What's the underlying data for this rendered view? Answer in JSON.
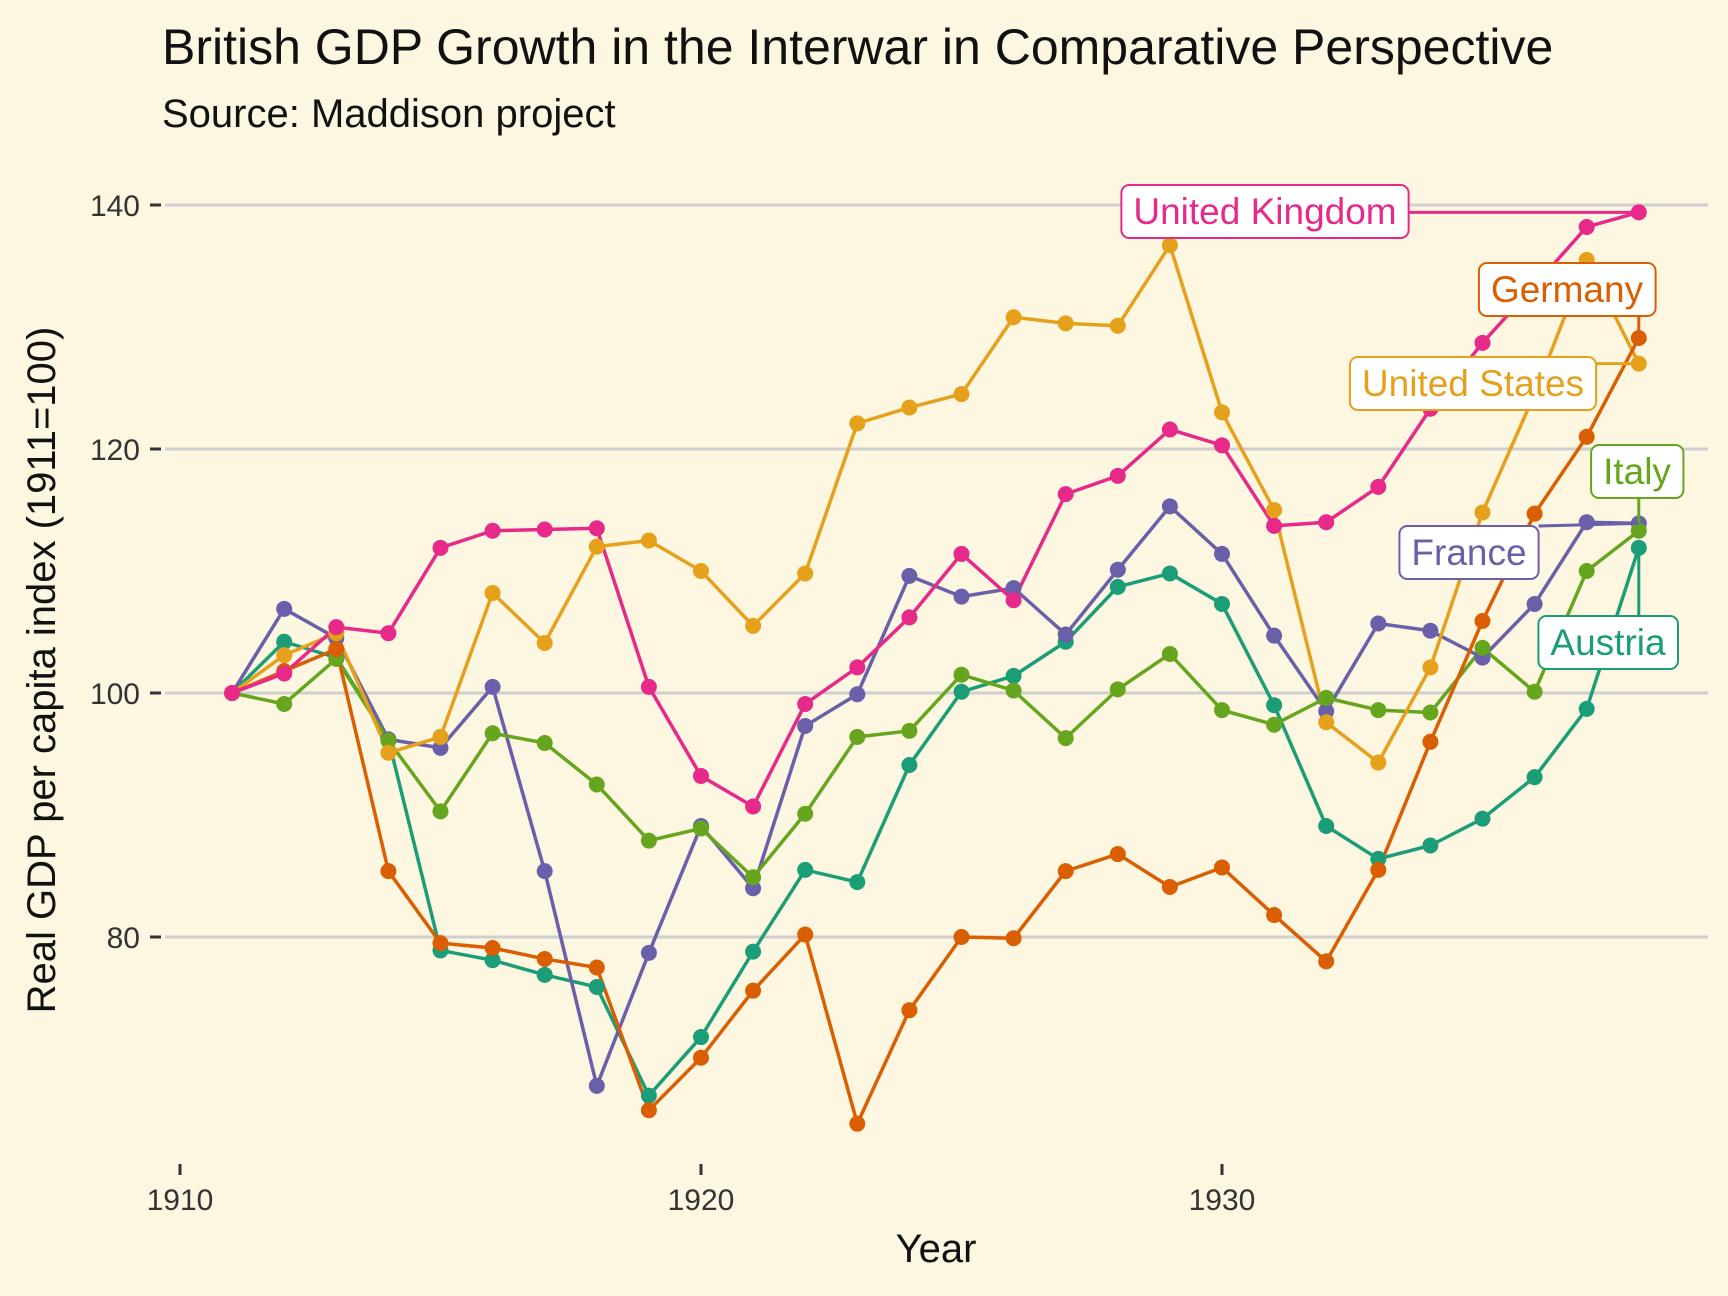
{
  "chart_data": {
    "type": "line",
    "title": "British GDP Growth in the Interwar in Comparative Perspective",
    "subtitle": "Source: Maddison project",
    "xlabel": "Year",
    "ylabel": "Real GDP per capita index (1911=100)",
    "xlim": [
      1910,
      1939
    ],
    "ylim": [
      62,
      143
    ],
    "x_ticks": [
      1910,
      1920,
      1930
    ],
    "y_ticks": [
      80,
      100,
      120,
      140
    ],
    "grid": "horizontal major",
    "legend": "direct labels at line ends",
    "x": [
      1911,
      1912,
      1913,
      1914,
      1915,
      1916,
      1917,
      1918,
      1919,
      1920,
      1921,
      1922,
      1923,
      1924,
      1925,
      1926,
      1927,
      1928,
      1929,
      1930,
      1931,
      1932,
      1933,
      1934,
      1935,
      1936,
      1937,
      1938
    ],
    "series": [
      {
        "name": "United Kingdom",
        "color": "#e7298a",
        "values": [
          100,
          101.6,
          105.4,
          104.9,
          111.9,
          113.3,
          113.4,
          113.5,
          100.5,
          93.2,
          90.7,
          99.1,
          102.1,
          106.2,
          111.4,
          107.6,
          116.3,
          117.8,
          121.6,
          120.3,
          113.7,
          114,
          116.9,
          123.3,
          128.7,
          133.4,
          138.2,
          139.4
        ]
      },
      {
        "name": "Germany",
        "color": "#d95f02",
        "values": [
          100,
          101.8,
          103.6,
          85.4,
          79.5,
          79.1,
          78.2,
          77.5,
          65.8,
          70.1,
          75.6,
          80.2,
          64.7,
          74,
          80,
          79.9,
          85.4,
          86.8,
          84.1,
          85.7,
          81.8,
          78,
          85.5,
          96,
          105.9,
          114.7,
          121,
          129.1
        ]
      },
      {
        "name": "United States",
        "color": "#e6a11c",
        "values": [
          100,
          103.1,
          104.9,
          95.1,
          96.4,
          108.2,
          104.1,
          112,
          112.5,
          110,
          105.5,
          109.8,
          122.1,
          123.4,
          124.5,
          130.8,
          130.3,
          130.1,
          136.7,
          123,
          115,
          97.6,
          94.3,
          102.1,
          114.8,
          124.5,
          135.5,
          127
        ]
      },
      {
        "name": "Italy",
        "color": "#66a61e",
        "values": [
          100,
          99.1,
          102.8,
          96.1,
          90.3,
          96.7,
          95.9,
          92.5,
          87.9,
          88.9,
          84.9,
          90.1,
          96.4,
          96.9,
          101.5,
          100.2,
          96.3,
          100.3,
          103.2,
          98.6,
          97.4,
          99.6,
          98.6,
          98.4,
          103.7,
          100.1,
          110,
          113.3
        ]
      },
      {
        "name": "France",
        "color": "#6a60a9",
        "values": [
          100,
          106.9,
          104.5,
          96.2,
          95.5,
          100.5,
          85.4,
          67.8,
          78.7,
          89.1,
          84,
          97.3,
          99.9,
          109.6,
          107.9,
          108.6,
          104.8,
          110.1,
          115.3,
          111.4,
          104.7,
          98.5,
          105.7,
          105.1,
          102.9,
          107.3,
          114,
          113.9
        ]
      },
      {
        "name": "Austria",
        "color": "#1b9e77",
        "values": [
          100,
          104.2,
          102.9,
          96.2,
          78.9,
          78.1,
          76.9,
          75.9,
          67,
          71.8,
          78.8,
          85.5,
          84.5,
          94.1,
          100.1,
          101.4,
          104.2,
          108.7,
          109.8,
          107.3,
          99,
          89.1,
          86.4,
          87.5,
          89.7,
          93.1,
          98.7,
          111.9
        ]
      }
    ]
  }
}
